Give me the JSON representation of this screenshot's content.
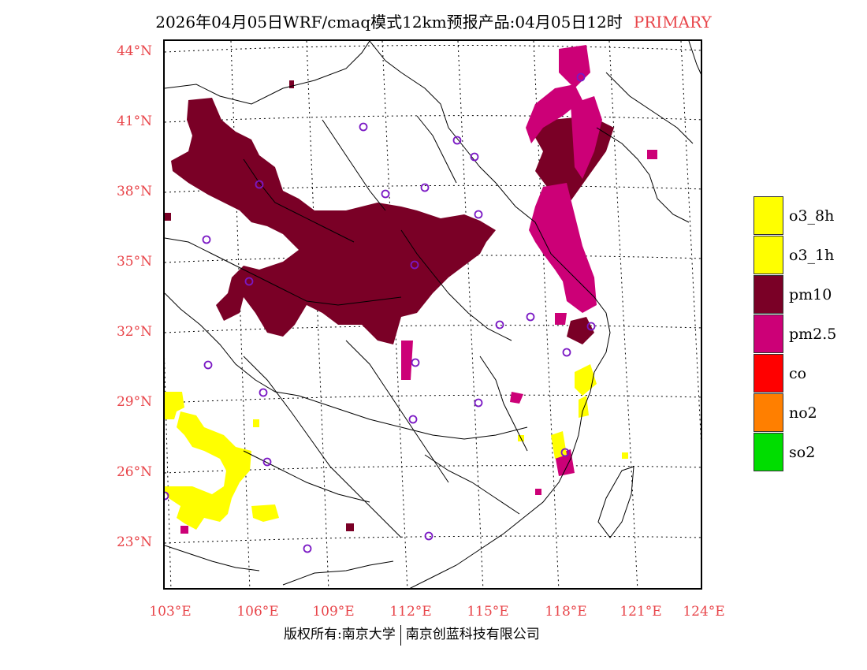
{
  "header": {
    "title": "2026年04月05日WRF/cmaq模式12km预报产品:04月05日12时",
    "tag": "PRIMARY",
    "tag_color": "#e8454a"
  },
  "axes": {
    "lat_labels": [
      "44°N",
      "41°N",
      "38°N",
      "35°N",
      "32°N",
      "29°N",
      "26°N",
      "23°N"
    ],
    "lon_labels": [
      "103°E",
      "106°E",
      "109°E",
      "112°E",
      "115°E",
      "118°E",
      "121°E",
      "124°E"
    ]
  },
  "legend": [
    {
      "label": "o3_8h",
      "color": "#ffff00"
    },
    {
      "label": "o3_1h",
      "color": "#ffff00"
    },
    {
      "label": "pm10",
      "color": "#7a0026"
    },
    {
      "label": "pm2.5",
      "color": "#cc0077"
    },
    {
      "label": "co",
      "color": "#ff0000"
    },
    {
      "label": "no2",
      "color": "#ff7f00"
    },
    {
      "label": "so2",
      "color": "#00dd00"
    }
  ],
  "footer": {
    "left": "版权所有:南京大学",
    "right": "南京创蓝科技有限公司"
  }
}
